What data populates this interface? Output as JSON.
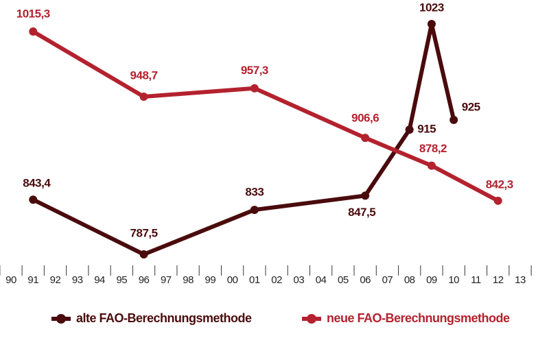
{
  "chart_data": {
    "type": "line",
    "categories": [
      "90",
      "91",
      "92",
      "93",
      "94",
      "95",
      "96",
      "97",
      "98",
      "99",
      "00",
      "01",
      "02",
      "03",
      "04",
      "05",
      "06",
      "07",
      "08",
      "09",
      "10",
      "11",
      "12",
      "13"
    ],
    "series": [
      {
        "name": "alte FAO-Berechnungsmethode",
        "color": "#4a0b0d",
        "x": [
          "91",
          "96",
          "01",
          "06",
          "08",
          "09",
          "10"
        ],
        "values": [
          843.4,
          787.5,
          833,
          847.5,
          915,
          1023,
          925
        ],
        "value_labels": [
          "843,4",
          "787,5",
          "833",
          "847,5",
          "915",
          "1023",
          "925"
        ]
      },
      {
        "name": "neue FAO-Berechnungsmethode",
        "color": "#b3222e",
        "x": [
          "91",
          "96",
          "01",
          "06",
          "09",
          "12"
        ],
        "values": [
          1015.3,
          948.7,
          957.3,
          906.6,
          878.2,
          842.3
        ],
        "value_labels": [
          "1015,3",
          "948,7",
          "957,3",
          "906,6",
          "878,2",
          "842,3"
        ]
      }
    ],
    "legend": "bottom"
  }
}
